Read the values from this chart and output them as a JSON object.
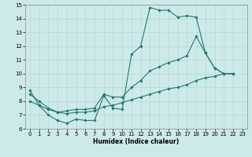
{
  "xlabel": "Humidex (Indice chaleur)",
  "xlim": [
    -0.5,
    23.5
  ],
  "ylim": [
    6,
    15
  ],
  "xticks": [
    0,
    1,
    2,
    3,
    4,
    5,
    6,
    7,
    8,
    9,
    10,
    11,
    12,
    13,
    14,
    15,
    16,
    17,
    18,
    19,
    20,
    21,
    22,
    23
  ],
  "yticks": [
    6,
    7,
    8,
    9,
    10,
    11,
    12,
    13,
    14,
    15
  ],
  "bg_color": "#cdeaea",
  "grid_color": "#b8d8d8",
  "line_color": "#217a6e",
  "series": {
    "line1": {
      "x": [
        0,
        1,
        2,
        3,
        4,
        5,
        6,
        7,
        8,
        9,
        10,
        11,
        12,
        13,
        14,
        15,
        16,
        17,
        18,
        19,
        20,
        21,
        22
      ],
      "y": [
        8.8,
        7.7,
        7.0,
        6.6,
        6.4,
        6.7,
        6.6,
        6.6,
        8.4,
        7.5,
        7.4,
        11.4,
        12.0,
        14.8,
        14.6,
        14.6,
        14.1,
        14.2,
        14.1,
        11.5,
        10.4,
        10.0,
        10.0
      ]
    },
    "line2": {
      "x": [
        0,
        1,
        2,
        3,
        4,
        5,
        6,
        7,
        8,
        9,
        10,
        11,
        12,
        13,
        14,
        15,
        16,
        17,
        18,
        19,
        20,
        21,
        22
      ],
      "y": [
        8.5,
        8.0,
        7.5,
        7.2,
        7.3,
        7.4,
        7.4,
        7.5,
        8.5,
        8.3,
        8.3,
        9.0,
        9.5,
        10.2,
        10.5,
        10.8,
        11.0,
        11.3,
        12.7,
        11.5,
        10.4,
        10.0,
        10.0
      ]
    },
    "line3": {
      "x": [
        0,
        1,
        2,
        3,
        4,
        5,
        6,
        7,
        8,
        9,
        10,
        11,
        12,
        13,
        14,
        15,
        16,
        17,
        18,
        19,
        20,
        21,
        22
      ],
      "y": [
        8.0,
        7.7,
        7.4,
        7.2,
        7.1,
        7.2,
        7.2,
        7.3,
        7.6,
        7.7,
        7.9,
        8.1,
        8.3,
        8.5,
        8.7,
        8.9,
        9.0,
        9.2,
        9.5,
        9.7,
        9.8,
        10.0,
        10.0
      ]
    }
  }
}
